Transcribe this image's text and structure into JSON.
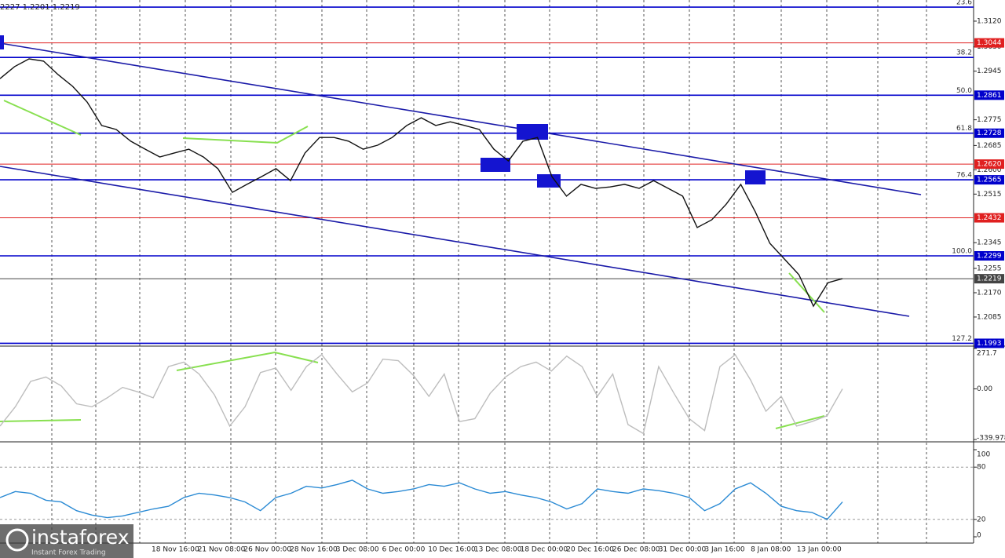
{
  "header": "2227 1.2201 1.2219",
  "watermark": {
    "brand": "instaforex",
    "slogan": "Instant Forex Trading"
  },
  "chart_data": [
    {
      "type": "line",
      "color": "#111111",
      "values": [
        1.2919,
        1.2961,
        1.2988,
        1.298,
        1.2933,
        1.2892,
        1.2837,
        1.2755,
        1.2741,
        1.27,
        1.2672,
        1.2645,
        1.2659,
        1.2672,
        1.2645,
        1.2604,
        1.2521,
        1.2549,
        1.2576,
        1.2604,
        1.2562,
        1.2659,
        1.2713,
        1.2713,
        1.27,
        1.2672,
        1.2686,
        1.2713,
        1.2755,
        1.2782,
        1.2755,
        1.2768,
        1.2755,
        1.2741,
        1.2672,
        1.2631,
        1.27,
        1.2713,
        1.2576,
        1.2508,
        1.2549,
        1.2535,
        1.254,
        1.2549,
        1.2535,
        1.2562,
        1.2535,
        1.2508,
        1.2398,
        1.2425,
        1.248,
        1.2549,
        1.2453,
        1.2343,
        1.2288,
        1.2233,
        1.2123,
        1.2205,
        1.2219
      ],
      "ylim": [
        1.1986,
        1.3194
      ],
      "yticks": [
        {
          "value": 1.312,
          "label": "1.3120"
        },
        {
          "value": 1.303,
          "label": "1.3030"
        },
        {
          "value": 1.2945,
          "label": "1.2945"
        },
        {
          "value": 1.2775,
          "label": "1.2775"
        },
        {
          "value": 1.2685,
          "label": "1.2685"
        },
        {
          "value": 1.26,
          "label": "1.2600"
        },
        {
          "value": 1.2515,
          "label": "1.2515"
        },
        {
          "value": 1.2345,
          "label": "1.2345"
        },
        {
          "value": 1.2255,
          "label": "1.2255"
        },
        {
          "value": 1.217,
          "label": "1.2170"
        },
        {
          "value": 1.2085,
          "label": "1.2085"
        }
      ],
      "levels": [
        {
          "value": 1.3169,
          "fib": "23.6",
          "color": "#0000cc"
        },
        {
          "value": 1.3044,
          "label": "1.3044",
          "color": "#e02020"
        },
        {
          "value": 1.2993,
          "fib": "38.2",
          "color": "#0000cc"
        },
        {
          "value": 1.2861,
          "fib": "50.0",
          "label": "1.2861",
          "color": "#0000cc"
        },
        {
          "value": 1.2728,
          "fib": "61.8",
          "label": "1.2728",
          "color": "#0000cc"
        },
        {
          "value": 1.262,
          "label": "1.2620",
          "color": "#e02020"
        },
        {
          "value": 1.2565,
          "fib": "76.4",
          "label": "1.2565",
          "color": "#0000cc"
        },
        {
          "value": 1.2432,
          "label": "1.2432",
          "color": "#e02020"
        },
        {
          "value": 1.2299,
          "fib": "100.0",
          "label": "1.2299",
          "color": "#0000cc"
        },
        {
          "value": 1.2219,
          "label": "1.2219",
          "color": "#444444"
        },
        {
          "value": 1.1993,
          "fib": "127.2",
          "label": "1.1993",
          "color": "#0000cc"
        }
      ],
      "time_labels": [
        "18 Nov 16:00",
        "21 Nov 08:00",
        "26 Nov 00:00",
        "28 Nov 16:00",
        "3 Dec 08:00",
        "6 Dec 00:00",
        "10 Dec 16:00",
        "13 Dec 08:00",
        "18 Dec 00:00",
        "20 Dec 16:00",
        "26 Dec 08:00",
        "31 Dec 00:00",
        "3 Jan 16:00",
        "8 Jan 08:00",
        "13 Jan 00:00"
      ]
    },
    {
      "type": "line",
      "color": "#bdbdbd",
      "values": [
        -250,
        -120,
        50,
        80,
        20,
        -100,
        -120,
        -60,
        10,
        -20,
        -60,
        150,
        180,
        100,
        -40,
        -250,
        -120,
        110,
        140,
        -10,
        150,
        230,
        100,
        -20,
        40,
        200,
        190,
        90,
        -50,
        100,
        -220,
        -200,
        -30,
        80,
        150,
        180,
        120,
        220,
        150,
        -50,
        100,
        -240,
        -300,
        150,
        -30,
        -200,
        -280,
        150,
        230,
        60,
        -150,
        -50,
        -250,
        -220,
        -180,
        0
      ],
      "ylim": [
        -339.978,
        271.7
      ],
      "yticks": [
        271.7,
        {
          "value": 0,
          "label": "0.00"
        },
        -339.978
      ]
    },
    {
      "type": "line",
      "color": "#2a8ad4",
      "values": [
        45,
        52,
        50,
        42,
        40,
        30,
        25,
        22,
        24,
        28,
        32,
        35,
        45,
        50,
        48,
        45,
        40,
        30,
        45,
        50,
        58,
        56,
        60,
        65,
        55,
        50,
        52,
        55,
        60,
        58,
        62,
        55,
        50,
        52,
        48,
        45,
        40,
        32,
        38,
        55,
        52,
        50,
        55,
        53,
        50,
        45,
        30,
        38,
        55,
        62,
        50,
        35,
        30,
        28,
        20,
        40
      ],
      "ylim": [
        0,
        100
      ],
      "yticks": [
        100,
        80,
        20,
        0
      ],
      "levels": [
        {
          "value": 80
        },
        {
          "value": 20
        }
      ]
    }
  ]
}
